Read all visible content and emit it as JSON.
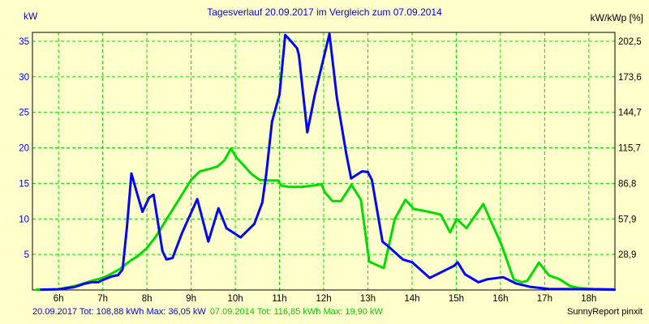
{
  "title": "Tagesverlauf 20.09.2017 im Vergleich zum 07.09.2014",
  "footer_right": "SunnyReport pinxit",
  "colors": {
    "background": "#FFFFCC",
    "grid": "#00DD00",
    "border": "#000000",
    "text_blue": "#0000DD",
    "text_green": "#00CC00",
    "text_black": "#000000",
    "series_2017": "#0000FF",
    "series_2014": "#00DC00"
  },
  "chart_data": {
    "type": "line",
    "title": "Tagesverlauf 20.09.2017 im Vergleich zum 07.09.2014",
    "ylabel_left": "kW",
    "ylabel_right": "kW/kWp [%]",
    "xlabel": "",
    "grid": true,
    "legend_position": "bottom",
    "xlim": [
      5.41,
      18.59
    ],
    "ylim": [
      0,
      36.25
    ],
    "x_tick_hours": [
      6,
      7,
      8,
      9,
      10,
      11,
      12,
      13,
      14,
      15,
      16,
      17,
      18
    ],
    "x_ticks": [
      "6h",
      "7h",
      "8h",
      "9h",
      "10h",
      "11h",
      "12h",
      "13h",
      "14h",
      "15h",
      "16h",
      "17h",
      "18h"
    ],
    "y_ticks_left": [
      35,
      30,
      25,
      20,
      15,
      10,
      5
    ],
    "y_ticks_right": [
      "202,5",
      "173,6",
      "144,7",
      "115,7",
      "86,8",
      "57,9",
      "28,9"
    ],
    "series": [
      {
        "name": "07.09.2014",
        "color": "#00DC00",
        "legend": "07.09.2014 Tot: 116,85 kWh Max: 19,90 kW",
        "total_kwh": "116,85",
        "max_kw": "19,90",
        "points": [
          [
            5.5,
            0.05
          ],
          [
            6.0,
            0.1
          ],
          [
            6.4,
            0.6
          ],
          [
            6.7,
            1.2
          ],
          [
            7.0,
            1.7
          ],
          [
            7.2,
            2.3
          ],
          [
            7.4,
            3.0
          ],
          [
            7.6,
            4.0
          ],
          [
            7.8,
            4.8
          ],
          [
            8.0,
            5.9
          ],
          [
            8.2,
            7.5
          ],
          [
            8.5,
            10.5
          ],
          [
            8.75,
            13.0
          ],
          [
            9.0,
            15.5
          ],
          [
            9.2,
            16.7
          ],
          [
            9.45,
            17.1
          ],
          [
            9.6,
            17.4
          ],
          [
            9.75,
            18.2
          ],
          [
            9.9,
            19.9
          ],
          [
            10.03,
            18.6
          ],
          [
            10.18,
            17.6
          ],
          [
            10.37,
            16.3
          ],
          [
            10.55,
            15.5
          ],
          [
            10.75,
            15.4
          ],
          [
            10.97,
            15.4
          ],
          [
            11.04,
            14.7
          ],
          [
            11.22,
            14.5
          ],
          [
            11.5,
            14.5
          ],
          [
            11.88,
            14.8
          ],
          [
            11.95,
            14.9
          ],
          [
            12.02,
            13.8
          ],
          [
            12.2,
            12.5
          ],
          [
            12.39,
            12.5
          ],
          [
            12.63,
            14.8
          ],
          [
            12.84,
            12.7
          ],
          [
            13.03,
            4.0
          ],
          [
            13.24,
            3.4
          ],
          [
            13.36,
            3.1
          ],
          [
            13.61,
            10.0
          ],
          [
            13.85,
            12.7
          ],
          [
            14.04,
            11.4
          ],
          [
            14.3,
            11.1
          ],
          [
            14.65,
            10.6
          ],
          [
            14.86,
            8.1
          ],
          [
            15.01,
            10.0
          ],
          [
            15.23,
            8.7
          ],
          [
            15.61,
            12.1
          ],
          [
            15.69,
            11.0
          ],
          [
            16.02,
            6.4
          ],
          [
            16.3,
            1.5
          ],
          [
            16.48,
            1.1
          ],
          [
            16.61,
            1.3
          ],
          [
            16.87,
            3.85
          ],
          [
            17.1,
            2.05
          ],
          [
            17.34,
            1.5
          ],
          [
            17.58,
            0.55
          ],
          [
            17.8,
            0.25
          ],
          [
            18.1,
            0.15
          ],
          [
            18.58,
            0.1
          ]
        ]
      },
      {
        "name": "20.09.2017",
        "color": "#0000FF",
        "legend": "20.09.2017 Tot: 108,88 kWh Max: 36,05 kW",
        "total_kwh": "108,88",
        "max_kw": "36,05",
        "points": [
          [
            5.6,
            0.05
          ],
          [
            6.0,
            0.1
          ],
          [
            6.35,
            0.4
          ],
          [
            6.6,
            0.9
          ],
          [
            6.75,
            1.1
          ],
          [
            6.9,
            1.1
          ],
          [
            7.0,
            1.4
          ],
          [
            7.2,
            1.9
          ],
          [
            7.35,
            2.1
          ],
          [
            7.45,
            2.9
          ],
          [
            7.55,
            9.0
          ],
          [
            7.65,
            16.4
          ],
          [
            7.8,
            13.1
          ],
          [
            7.9,
            11.0
          ],
          [
            8.05,
            13.0
          ],
          [
            8.15,
            13.4
          ],
          [
            8.35,
            5.5
          ],
          [
            8.44,
            4.3
          ],
          [
            8.58,
            4.5
          ],
          [
            8.8,
            8.1
          ],
          [
            9.14,
            12.8
          ],
          [
            9.39,
            6.8
          ],
          [
            9.62,
            11.5
          ],
          [
            9.8,
            8.7
          ],
          [
            10.12,
            7.4
          ],
          [
            10.43,
            9.3
          ],
          [
            10.61,
            12.3
          ],
          [
            10.7,
            16.3
          ],
          [
            10.83,
            23.7
          ],
          [
            11.0,
            27.5
          ],
          [
            11.13,
            35.9
          ],
          [
            11.25,
            35.1
          ],
          [
            11.4,
            34.0
          ],
          [
            11.44,
            33.0
          ],
          [
            11.63,
            22.2
          ],
          [
            11.8,
            27.5
          ],
          [
            12.13,
            36.05
          ],
          [
            12.3,
            27.0
          ],
          [
            12.51,
            19.2
          ],
          [
            12.62,
            15.7
          ],
          [
            12.87,
            16.7
          ],
          [
            13.0,
            16.6
          ],
          [
            13.09,
            15.5
          ],
          [
            13.33,
            6.8
          ],
          [
            13.45,
            6.2
          ],
          [
            13.79,
            4.3
          ],
          [
            14.0,
            3.9
          ],
          [
            14.4,
            1.7
          ],
          [
            14.95,
            3.4
          ],
          [
            15.03,
            3.9
          ],
          [
            15.2,
            2.2
          ],
          [
            15.5,
            1.1
          ],
          [
            15.7,
            1.5
          ],
          [
            16.06,
            1.8
          ],
          [
            16.36,
            0.9
          ],
          [
            16.67,
            0.45
          ],
          [
            17.1,
            0.15
          ],
          [
            18.0,
            0.1
          ],
          [
            18.58,
            0.05
          ]
        ]
      }
    ]
  }
}
